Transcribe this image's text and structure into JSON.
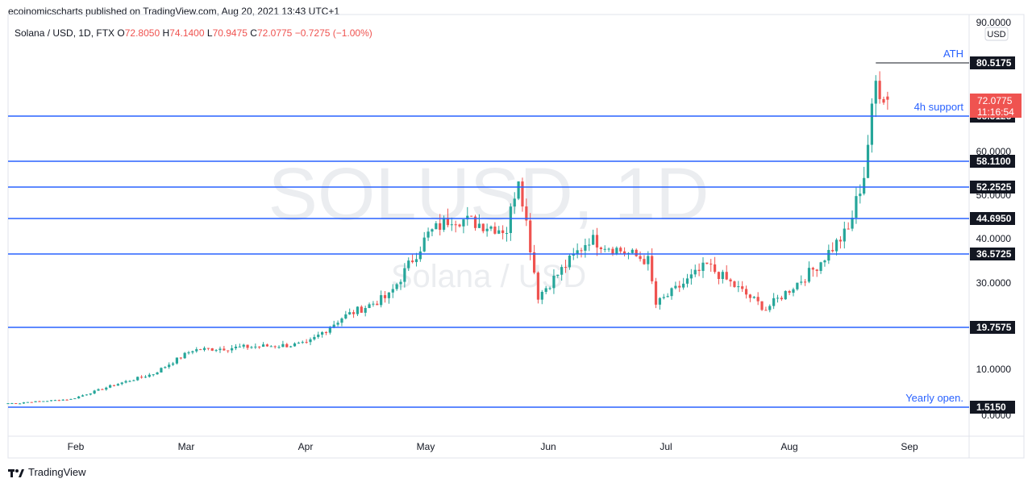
{
  "header": {
    "publisher_line": "ecoinomicscharts published on TradingView.com, Aug 20, 2021 13:43 UTC+1",
    "symbol": "Solana / USD, 1D, FTX",
    "open_label": "O",
    "open_value": "72.8050",
    "high_label": "H",
    "high_value": "74.1400",
    "low_label": "L",
    "low_value": "70.9475",
    "close_label": "C",
    "close_value": "72.0775",
    "change": "−0.7275 (−1.00%)"
  },
  "watermark": {
    "symbol": "SOLUSD, 1D",
    "name": "Solana / USD"
  },
  "footer": {
    "brand": "TradingView"
  },
  "colors": {
    "up": "#26a69a",
    "down": "#ef5350",
    "level_line": "#2962ff",
    "level_tag": "#131722",
    "current_tag": "#ef5350",
    "annotation_text": "#2962ff",
    "axis_text": "#131722",
    "border": "#e0e3eb"
  },
  "chart_data": {
    "type": "candlestick",
    "title": "Solana / USD, 1D, FTX",
    "currency": "USD",
    "x_axis": {
      "ticks": [
        "Feb",
        "Mar",
        "Apr",
        "May",
        "Jun",
        "Jul",
        "Aug",
        "Sep"
      ]
    },
    "y_axis": {
      "ticks": [
        "90.0000",
        "60.0000",
        "50.0000",
        "40.0000",
        "30.0000",
        "10.0000",
        "0.0000"
      ],
      "scale": "nonlinear"
    },
    "current_price": "72.0775",
    "countdown": "11:16:54",
    "levels": [
      {
        "price": 80.5175,
        "label": "80.5175",
        "annotation": "ATH"
      },
      {
        "price": 68.3125,
        "label": "68.3125",
        "annotation": "4h support"
      },
      {
        "price": 58.11,
        "label": "58.1100",
        "annotation": ""
      },
      {
        "price": 52.2525,
        "label": "52.2525",
        "annotation": ""
      },
      {
        "price": 44.695,
        "label": "44.6950",
        "annotation": ""
      },
      {
        "price": 36.5725,
        "label": "36.5725",
        "annotation": ""
      },
      {
        "price": 19.7575,
        "label": "19.7575",
        "annotation": ""
      },
      {
        "price": 1.515,
        "label": "1.5150",
        "annotation": "Yearly open."
      }
    ],
    "close_path_approx": [
      [
        "2021-01-12",
        2.6
      ],
      [
        "2021-01-24",
        3.3
      ],
      [
        "2021-02-04",
        6.5
      ],
      [
        "2021-02-14",
        9.0
      ],
      [
        "2021-02-24",
        14.5
      ],
      [
        "2021-03-10",
        15.2
      ],
      [
        "2021-03-25",
        15.8
      ],
      [
        "2021-04-03",
        22
      ],
      [
        "2021-04-15",
        27
      ],
      [
        "2021-04-25",
        41
      ],
      [
        "2021-05-01",
        45
      ],
      [
        "2021-05-15",
        42
      ],
      [
        "2021-05-18",
        55
      ],
      [
        "2021-05-23",
        27
      ],
      [
        "2021-06-05",
        40
      ],
      [
        "2021-06-20",
        35
      ],
      [
        "2021-06-22",
        25
      ],
      [
        "2021-07-05",
        34
      ],
      [
        "2021-07-20",
        24
      ],
      [
        "2021-08-01",
        33
      ],
      [
        "2021-08-10",
        42
      ],
      [
        "2021-08-14",
        55
      ],
      [
        "2021-08-17",
        76
      ],
      [
        "2021-08-20",
        72.0775
      ]
    ]
  }
}
